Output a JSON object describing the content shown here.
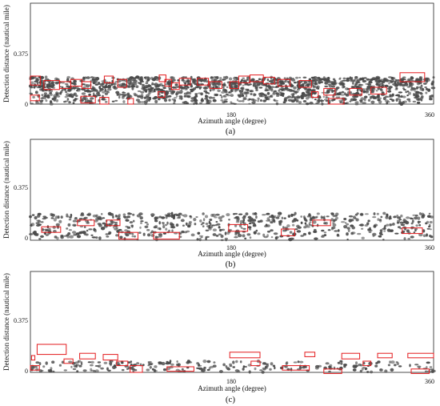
{
  "colors": {
    "echo": "#4a4a4a",
    "box": "#e31a1c",
    "axis": "#222222"
  },
  "chart_data": [
    {
      "type": "scatter",
      "panel_label": "(a)",
      "xlabel": "Azimuth angle (degree)",
      "ylabel": "Detection distance (nautical mile)",
      "xticks": [
        "180",
        "360"
      ],
      "yticks": [
        "0",
        "0.375"
      ],
      "xlim": [
        0,
        360
      ],
      "ylim": [
        0,
        0.9
      ],
      "echo_band": [
        0,
        0.24
      ],
      "echo_density": "dense",
      "detection_boxes": [
        {
          "az": [
            0,
            9
          ],
          "dist": [
            0.17,
            0.25
          ]
        },
        {
          "az": [
            0,
            8
          ],
          "dist": [
            0.03,
            0.08
          ]
        },
        {
          "az": [
            12,
            26
          ],
          "dist": [
            0.13,
            0.21
          ]
        },
        {
          "az": [
            26,
            36
          ],
          "dist": [
            0.14,
            0.2
          ]
        },
        {
          "az": [
            36,
            46
          ],
          "dist": [
            0.16,
            0.22
          ]
        },
        {
          "az": [
            46,
            54
          ],
          "dist": [
            0.14,
            0.2
          ]
        },
        {
          "az": [
            45,
            58
          ],
          "dist": [
            0.01,
            0.07
          ]
        },
        {
          "az": [
            62,
            70
          ],
          "dist": [
            0.0,
            0.06
          ]
        },
        {
          "az": [
            66,
            74
          ],
          "dist": [
            0.19,
            0.25
          ]
        },
        {
          "az": [
            78,
            86
          ],
          "dist": [
            0.15,
            0.22
          ]
        },
        {
          "az": [
            87,
            92
          ],
          "dist": [
            0.0,
            0.05
          ]
        },
        {
          "az": [
            115,
            121
          ],
          "dist": [
            0.2,
            0.26
          ]
        },
        {
          "az": [
            114,
            120
          ],
          "dist": [
            0.06,
            0.11
          ]
        },
        {
          "az": [
            120,
            126
          ],
          "dist": [
            0.16,
            0.22
          ]
        },
        {
          "az": [
            126,
            133
          ],
          "dist": [
            0.13,
            0.19
          ]
        },
        {
          "az": [
            133,
            143
          ],
          "dist": [
            0.17,
            0.23
          ]
        },
        {
          "az": [
            149,
            159
          ],
          "dist": [
            0.17,
            0.23
          ]
        },
        {
          "az": [
            160,
            171
          ],
          "dist": [
            0.14,
            0.2
          ]
        },
        {
          "az": [
            178,
            186
          ],
          "dist": [
            0.14,
            0.2
          ]
        },
        {
          "az": [
            186,
            196
          ],
          "dist": [
            0.19,
            0.25
          ]
        },
        {
          "az": [
            196,
            208
          ],
          "dist": [
            0.2,
            0.26
          ]
        },
        {
          "az": [
            208,
            218
          ],
          "dist": [
            0.18,
            0.24
          ]
        },
        {
          "az": [
            221,
            232
          ],
          "dist": [
            0.16,
            0.22
          ]
        },
        {
          "az": [
            240,
            251
          ],
          "dist": [
            0.15,
            0.21
          ]
        },
        {
          "az": [
            251,
            257
          ],
          "dist": [
            0.06,
            0.11
          ]
        },
        {
          "az": [
            262,
            272
          ],
          "dist": [
            0.08,
            0.14
          ]
        },
        {
          "az": [
            266,
            280
          ],
          "dist": [
            0.0,
            0.05
          ]
        },
        {
          "az": [
            285,
            296
          ],
          "dist": [
            0.08,
            0.14
          ]
        },
        {
          "az": [
            304,
            318
          ],
          "dist": [
            0.09,
            0.15
          ]
        },
        {
          "az": [
            330,
            352
          ],
          "dist": [
            0.2,
            0.28
          ]
        }
      ]
    },
    {
      "type": "scatter",
      "panel_label": "(b)",
      "xlabel": "Azimuth angle (degree)",
      "ylabel": "Detection distance (nautical mile)",
      "xticks": [
        "180",
        "360"
      ],
      "yticks": [
        "0",
        "0.375"
      ],
      "xlim": [
        0,
        360
      ],
      "ylim": [
        0,
        0.9
      ],
      "echo_band": [
        0,
        0.24
      ],
      "echo_density": "medium",
      "detection_boxes": [
        {
          "az": [
            10,
            27
          ],
          "dist": [
            0.07,
            0.12
          ]
        },
        {
          "az": [
            42,
            57
          ],
          "dist": [
            0.13,
            0.18
          ]
        },
        {
          "az": [
            68,
            80
          ],
          "dist": [
            0.13,
            0.18
          ]
        },
        {
          "az": [
            79,
            96
          ],
          "dist": [
            0.01,
            0.07
          ]
        },
        {
          "az": [
            110,
            133
          ],
          "dist": [
            0.01,
            0.07
          ]
        },
        {
          "az": [
            177,
            194
          ],
          "dist": [
            0.08,
            0.14
          ]
        },
        {
          "az": [
            224,
            236
          ],
          "dist": [
            0.04,
            0.1
          ]
        },
        {
          "az": [
            252,
            268
          ],
          "dist": [
            0.13,
            0.18
          ]
        },
        {
          "az": [
            332,
            350
          ],
          "dist": [
            0.06,
            0.11
          ]
        }
      ]
    },
    {
      "type": "scatter",
      "panel_label": "(c)",
      "xlabel": "Azimuth angle (degree)",
      "ylabel": "Detection distance (nautical mile)",
      "xticks": [
        "180",
        "360"
      ],
      "yticks": [
        "0",
        "0.375"
      ],
      "xlim": [
        0,
        360
      ],
      "ylim": [
        0,
        0.9
      ],
      "echo_band": [
        0,
        0.1
      ],
      "echo_density": "sparse",
      "detection_boxes": [
        {
          "az": [
            0,
            8
          ],
          "dist": [
            0.02,
            0.06
          ]
        },
        {
          "az": [
            1,
            4
          ],
          "dist": [
            0.11,
            0.15
          ]
        },
        {
          "az": [
            6,
            32
          ],
          "dist": [
            0.16,
            0.25
          ]
        },
        {
          "az": [
            30,
            38
          ],
          "dist": [
            0.08,
            0.12
          ]
        },
        {
          "az": [
            44,
            58
          ],
          "dist": [
            0.12,
            0.17
          ]
        },
        {
          "az": [
            65,
            78
          ],
          "dist": [
            0.11,
            0.16
          ]
        },
        {
          "az": [
            77,
            87
          ],
          "dist": [
            0.06,
            0.1
          ]
        },
        {
          "az": [
            89,
            100
          ],
          "dist": [
            0.0,
            0.06
          ]
        },
        {
          "az": [
            122,
            146
          ],
          "dist": [
            0.01,
            0.05
          ]
        },
        {
          "az": [
            178,
            205
          ],
          "dist": [
            0.13,
            0.18
          ]
        },
        {
          "az": [
            197,
            205
          ],
          "dist": [
            0.06,
            0.1
          ]
        },
        {
          "az": [
            225,
            249
          ],
          "dist": [
            0.02,
            0.06
          ]
        },
        {
          "az": [
            245,
            254
          ],
          "dist": [
            0.14,
            0.18
          ]
        },
        {
          "az": [
            262,
            278
          ],
          "dist": [
            -0.01,
            0.03
          ]
        },
        {
          "az": [
            278,
            294
          ],
          "dist": [
            0.12,
            0.17
          ]
        },
        {
          "az": [
            297,
            304
          ],
          "dist": [
            0.06,
            0.1
          ]
        },
        {
          "az": [
            310,
            323
          ],
          "dist": [
            0.13,
            0.17
          ]
        },
        {
          "az": [
            337,
            362
          ],
          "dist": [
            0.13,
            0.17
          ]
        },
        {
          "az": [
            340,
            356
          ],
          "dist": [
            -0.01,
            0.03
          ]
        }
      ]
    }
  ]
}
